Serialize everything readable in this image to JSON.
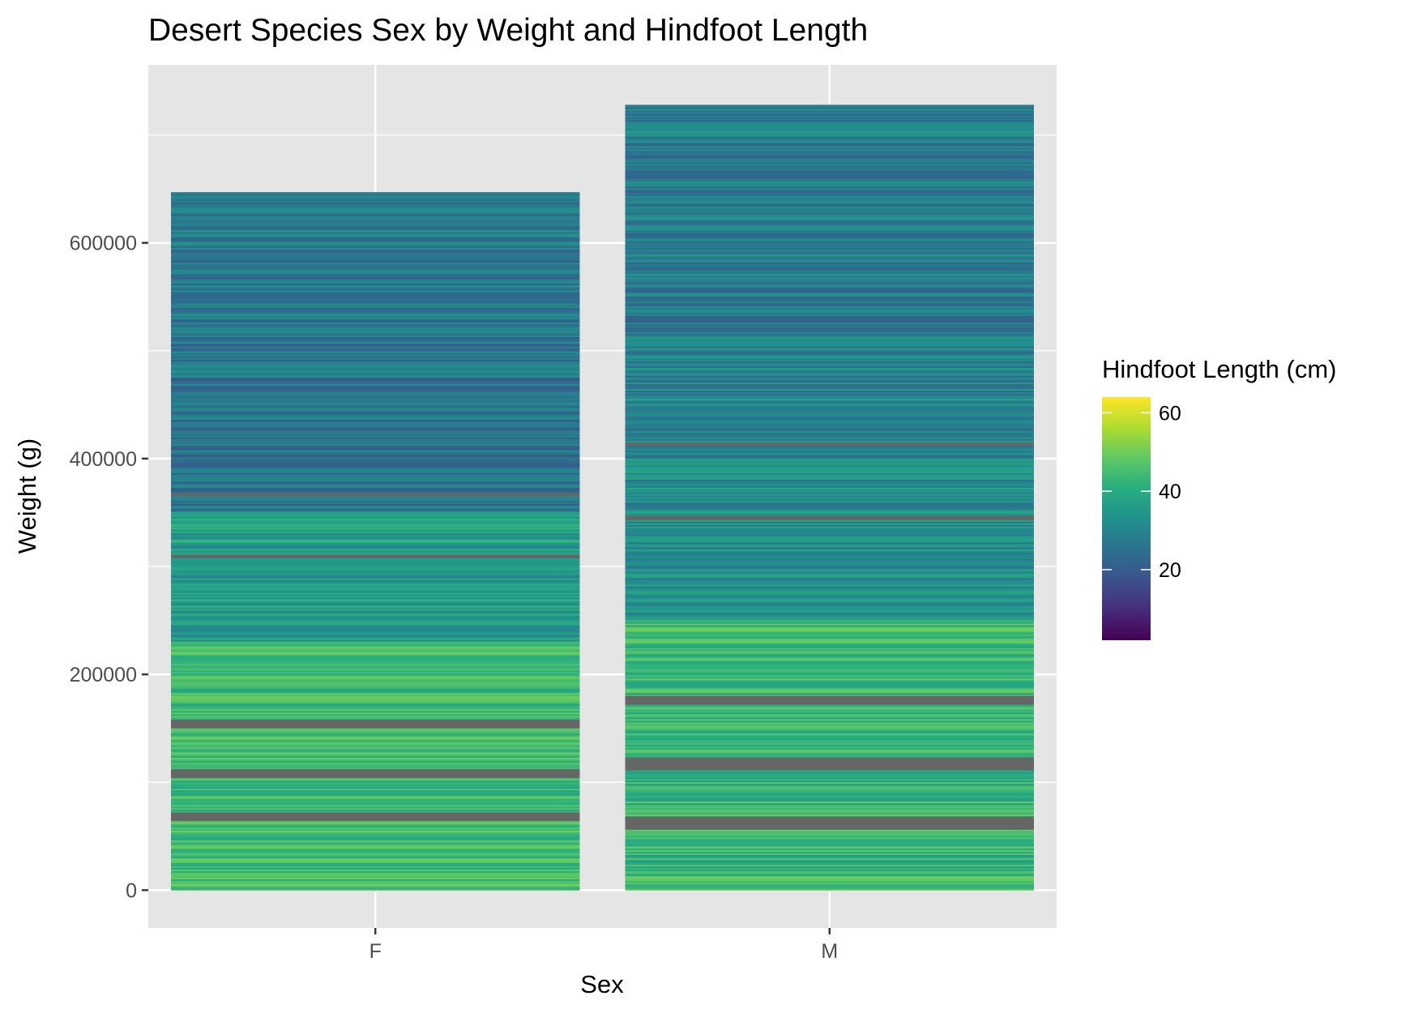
{
  "chart_data": {
    "type": "bar",
    "stacked": true,
    "title": "Desert Species Sex by Weight and Hindfoot Length",
    "xlabel": "Sex",
    "ylabel": "Weight (g)",
    "categories": [
      "F",
      "M"
    ],
    "values": [
      647000,
      728000
    ],
    "ylim": [
      -35000,
      765000
    ],
    "yticks": [
      0,
      200000,
      400000,
      600000
    ],
    "ytick_labels": [
      "0",
      "200000",
      "400000",
      "600000"
    ],
    "grid": true,
    "background": "#e5e5e5",
    "legend": {
      "title": "Hindfoot Length (cm)",
      "type": "colorbar",
      "palette": "viridis",
      "placement": "right",
      "range": [
        2,
        64
      ],
      "ticks": [
        20,
        40,
        60
      ],
      "tick_labels": [
        "20",
        "40",
        "60"
      ],
      "na_color": "#666666"
    },
    "fill_bands": [
      {
        "sex": "F",
        "description": "approximate dominant hindfoot length by weight range",
        "bands": [
          {
            "from": 0,
            "to": 230000,
            "hindfoot": 44
          },
          {
            "from": 230000,
            "to": 350000,
            "hindfoot": 36
          },
          {
            "from": 350000,
            "to": 520000,
            "hindfoot": 26
          },
          {
            "from": 520000,
            "to": 647000,
            "hindfoot": 28
          }
        ],
        "na_bands": [
          {
            "from": 64000,
            "to": 72000
          },
          {
            "from": 104000,
            "to": 112000
          },
          {
            "from": 150000,
            "to": 158000
          },
          {
            "from": 308000,
            "to": 311000
          },
          {
            "from": 365000,
            "to": 368000
          }
        ]
      },
      {
        "sex": "M",
        "description": "approximate dominant hindfoot length by weight range",
        "bands": [
          {
            "from": 0,
            "to": 250000,
            "hindfoot": 43
          },
          {
            "from": 250000,
            "to": 420000,
            "hindfoot": 32
          },
          {
            "from": 420000,
            "to": 520000,
            "hindfoot": 30
          },
          {
            "from": 520000,
            "to": 728000,
            "hindfoot": 28
          }
        ],
        "na_bands": [
          {
            "from": 56000,
            "to": 68000
          },
          {
            "from": 111000,
            "to": 123000
          },
          {
            "from": 172000,
            "to": 180000
          },
          {
            "from": 343000,
            "to": 347000
          },
          {
            "from": 412000,
            "to": 415000
          }
        ]
      }
    ]
  }
}
